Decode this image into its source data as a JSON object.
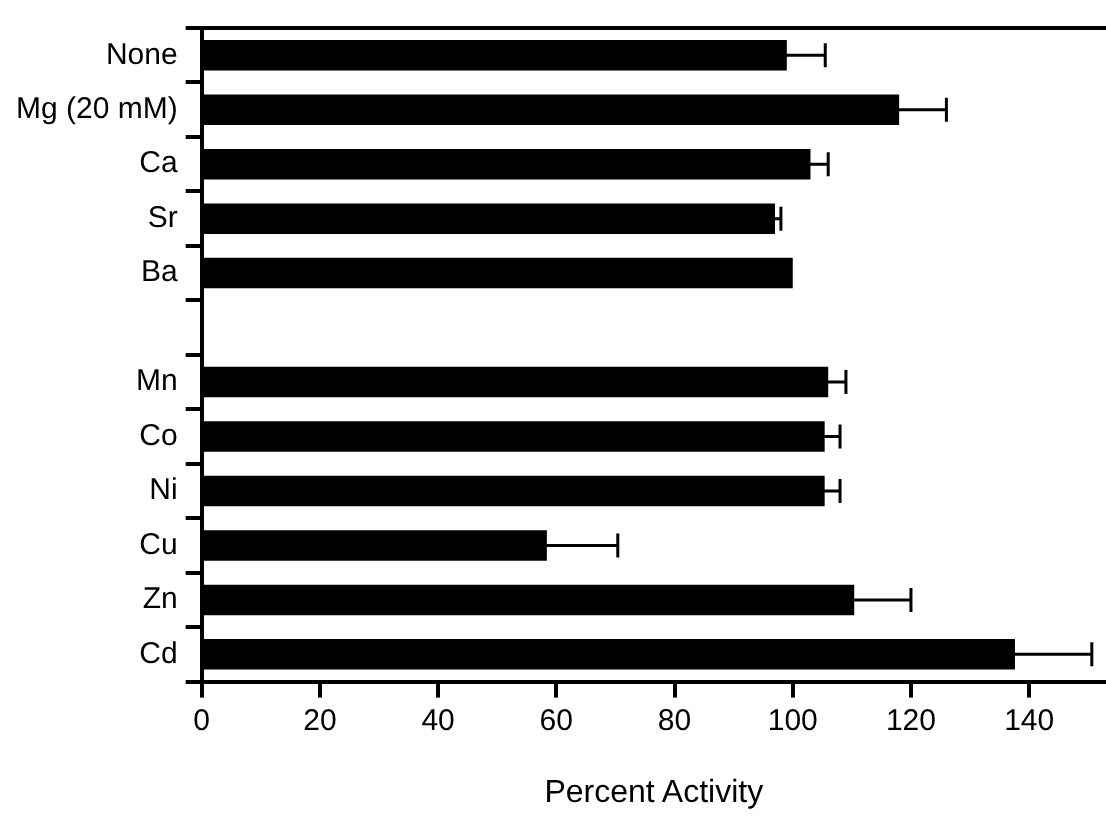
{
  "chart_data": {
    "type": "bar",
    "orientation": "horizontal",
    "xlabel": "Percent Activity",
    "categories": [
      "None",
      "Mg (20 mM)",
      "Ca",
      "Sr",
      "Ba",
      null,
      "Mn",
      "Co",
      "Ni",
      "Cu",
      "Zn",
      "Cd"
    ],
    "values": [
      99,
      118,
      103,
      97,
      100,
      null,
      106,
      105.4,
      105.4,
      58.4,
      110.4,
      137.6
    ],
    "errors": [
      6.5,
      8,
      3,
      1,
      null,
      null,
      3,
      2.6,
      2.6,
      12,
      9.6,
      13
    ],
    "color": "#000000",
    "xlim": [
      0,
      153
    ],
    "xticks": [
      0,
      20,
      40,
      60,
      80,
      100,
      120,
      140
    ],
    "grid": false,
    "legend": false
  }
}
